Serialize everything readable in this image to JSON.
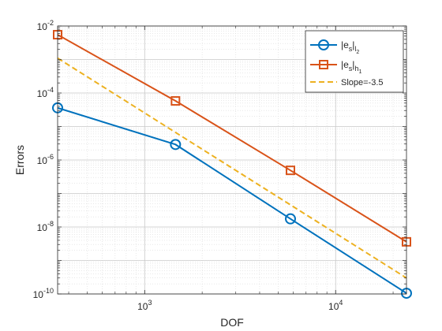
{
  "chart_data": {
    "type": "line",
    "xlabel": "DOF",
    "ylabel": "Errors",
    "xscale": "log",
    "yscale": "log",
    "xlim": [
      350,
      23500
    ],
    "ylim": [
      1e-10,
      0.01
    ],
    "x_ticks": [
      {
        "value": 1000,
        "base": "10",
        "exp": "3"
      },
      {
        "value": 10000,
        "base": "10",
        "exp": "4"
      }
    ],
    "y_ticks": [
      {
        "value": 1e-10,
        "base": "10",
        "exp": "-10"
      },
      {
        "value": 1e-08,
        "base": "10",
        "exp": "-8"
      },
      {
        "value": 1e-06,
        "base": "10",
        "exp": "-6"
      },
      {
        "value": 0.0001,
        "base": "10",
        "exp": "-4"
      },
      {
        "value": 0.01,
        "base": "10",
        "exp": "-2"
      }
    ],
    "grid": true,
    "minor_grid": true,
    "legend_position": "top-right",
    "series": [
      {
        "name": "|e_s|_l2",
        "legend": {
          "main": "|e",
          "sub1": "s",
          "mid": "|",
          "sub2": "l",
          "subsub": "2"
        },
        "color": "#0072BD",
        "marker": "circle",
        "style": "solid",
        "x": [
          350,
          1450,
          5800,
          23500
        ],
        "y": [
          3.6e-05,
          2.9e-06,
          1.75e-08,
          1.05e-10
        ]
      },
      {
        "name": "|e_s|_h1",
        "legend": {
          "main": "|e",
          "sub1": "s",
          "mid": "|",
          "sub2": "h",
          "subsub": "1"
        },
        "color": "#D95319",
        "marker": "square",
        "style": "solid",
        "x": [
          350,
          1450,
          5800,
          23500
        ],
        "y": [
          0.0055,
          5.8e-05,
          4.9e-07,
          3.6e-09
        ]
      },
      {
        "name": "Slope=-3.5",
        "legend": {
          "main": "Slope=-3.5"
        },
        "color": "#EDB120",
        "marker": "none",
        "style": "dashed",
        "x": [
          350,
          23500
        ],
        "y": [
          0.0011,
          3e-10
        ]
      }
    ]
  }
}
